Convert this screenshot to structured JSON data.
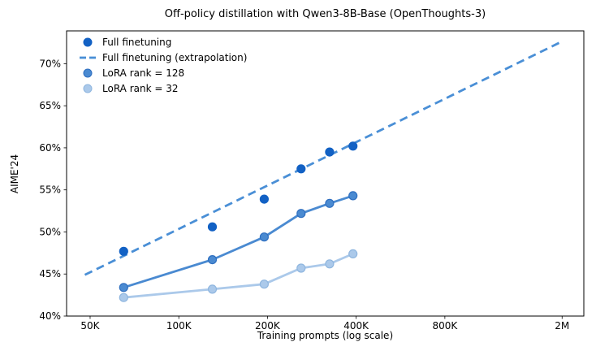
{
  "figure": {
    "title": "Off-policy distillation with Qwen3-8B-Base (OpenThoughts-3)",
    "xlabel": "Training prompts (log scale)",
    "ylabel": "AIME'24"
  },
  "chart_data": {
    "type": "scatter",
    "title": "Off-policy distillation with Qwen3-8B-Base (OpenThoughts-3)",
    "xlabel": "Training prompts (log scale)",
    "ylabel": "AIME'24",
    "x_scale": "log",
    "grid": false,
    "xlim": [
      41600,
      2370000
    ],
    "ylim": [
      40,
      73.9
    ],
    "x_ticks": [
      {
        "value": 50000,
        "label": "50K"
      },
      {
        "value": 100000,
        "label": "100K"
      },
      {
        "value": 200000,
        "label": "200K"
      },
      {
        "value": 400000,
        "label": "400K"
      },
      {
        "value": 800000,
        "label": "800K"
      },
      {
        "value": 2000000,
        "label": "2M"
      }
    ],
    "y_ticks": [
      {
        "value": 40,
        "label": "40%"
      },
      {
        "value": 45,
        "label": "45%"
      },
      {
        "value": 50,
        "label": "50%"
      },
      {
        "value": 55,
        "label": "55%"
      },
      {
        "value": 60,
        "label": "60%"
      },
      {
        "value": 65,
        "label": "65%"
      },
      {
        "value": 70,
        "label": "70%"
      }
    ],
    "legend": {
      "position": "upper-left",
      "frame": false
    },
    "series": [
      {
        "name": "Full finetuning",
        "style": "scatter",
        "color": "#1261c4",
        "marker_edge": "#1261c4",
        "x": [
          65000,
          130000,
          195000,
          260000,
          325000,
          390000
        ],
        "y": [
          47.7,
          50.6,
          53.9,
          57.5,
          59.5,
          60.2
        ]
      },
      {
        "name": "Full finetuning (extrapolation)",
        "style": "dashed-line",
        "color": "#4a8fd6",
        "x": [
          48000,
          1960000
        ],
        "y": [
          44.9,
          72.5
        ]
      },
      {
        "name": "LoRA rank = 128",
        "style": "line-scatter",
        "color": "#4a8ad1",
        "marker_edge": "#2f6fc0",
        "x": [
          65000,
          130000,
          195000,
          260000,
          325000,
          390000
        ],
        "y": [
          43.4,
          46.7,
          49.4,
          52.2,
          53.4,
          54.3
        ]
      },
      {
        "name": "LoRA rank = 32",
        "style": "line-scatter",
        "color": "#abc9ea",
        "marker_edge": "#8fb6df",
        "x": [
          65000,
          130000,
          195000,
          260000,
          325000,
          390000
        ],
        "y": [
          42.2,
          43.2,
          43.8,
          45.7,
          46.2,
          47.4
        ]
      }
    ]
  }
}
